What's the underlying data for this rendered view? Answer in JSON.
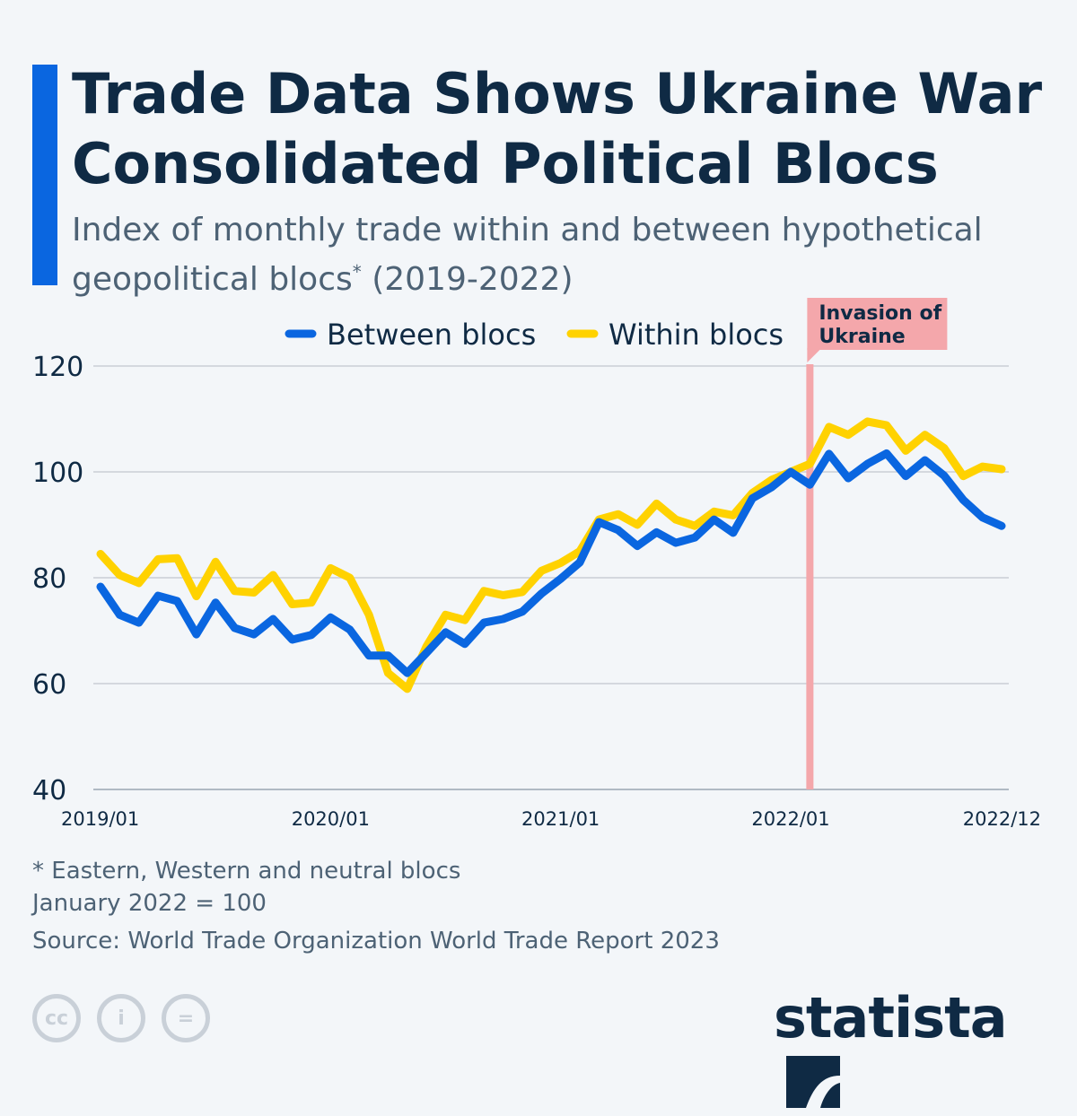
{
  "title_line1": "Trade Data Shows Ukraine War",
  "title_line2": "Consolidated Political Blocs",
  "subtitle_line1": "Index of monthly trade within and between hypothetical",
  "subtitle_line2": "geopolitical blocs",
  "subtitle_sup": "*",
  "subtitle_years": " (2019-2022)",
  "footnote": "* Eastern, Western and neutral blocs",
  "base_note": "January 2022 = 100",
  "source": "Source: World Trade Organization World Trade Report 2023",
  "logo": "statista",
  "colors": {
    "between": "#0a66e0",
    "within": "#ffd200",
    "annotation": "#f4a7ab",
    "accent": "#0a66e0"
  },
  "chart_data": {
    "type": "line",
    "title": "",
    "xlabel": "",
    "ylabel": "",
    "ylim": [
      40,
      120
    ],
    "yticks": [
      40,
      60,
      80,
      100,
      120
    ],
    "xtick_labels": [
      "2019/01",
      "2020/01",
      "2021/01",
      "2022/01",
      "2022/12"
    ],
    "grid": true,
    "legend": "top",
    "annotation": {
      "label_line1": "Invasion of",
      "label_line2": "Ukraine",
      "x": "2022/02"
    },
    "x_start": "2019/01",
    "x_end": "2022/12",
    "series": [
      {
        "name": "Between blocs",
        "color": "#0a66e0",
        "values": [
          78.3,
          73,
          71.5,
          76.6,
          75.6,
          69.3,
          75.3,
          70.5,
          69.3,
          72.2,
          68.3,
          69.2,
          72.5,
          70.2,
          65.3,
          65.3,
          62,
          65.8,
          69.7,
          67.5,
          71.5,
          72.2,
          73.6,
          77,
          79.8,
          82.9,
          90.5,
          89,
          86,
          88.6,
          86.6,
          87.6,
          91,
          88.5,
          95,
          97.1,
          100,
          97.6,
          103.4,
          98.8,
          101.5,
          103.5,
          99.2,
          102.2,
          99.3,
          94.7,
          91.4,
          89.8
        ]
      },
      {
        "name": "Within blocs",
        "color": "#ffd200",
        "values": [
          84.5,
          80.5,
          79,
          83.5,
          83.7,
          76.5,
          83,
          77.5,
          77.2,
          80.5,
          75,
          75.3,
          81.8,
          80,
          73,
          62,
          59,
          67,
          73,
          72,
          77.5,
          76.7,
          77.3,
          81.3,
          82.8,
          85,
          91,
          92,
          90,
          94,
          91,
          89.8,
          92.5,
          91.8,
          96,
          98.5,
          100,
          101.5,
          108.5,
          107,
          109.5,
          108.8,
          104,
          107,
          104.5,
          99.2,
          101,
          100.5
        ]
      }
    ]
  }
}
